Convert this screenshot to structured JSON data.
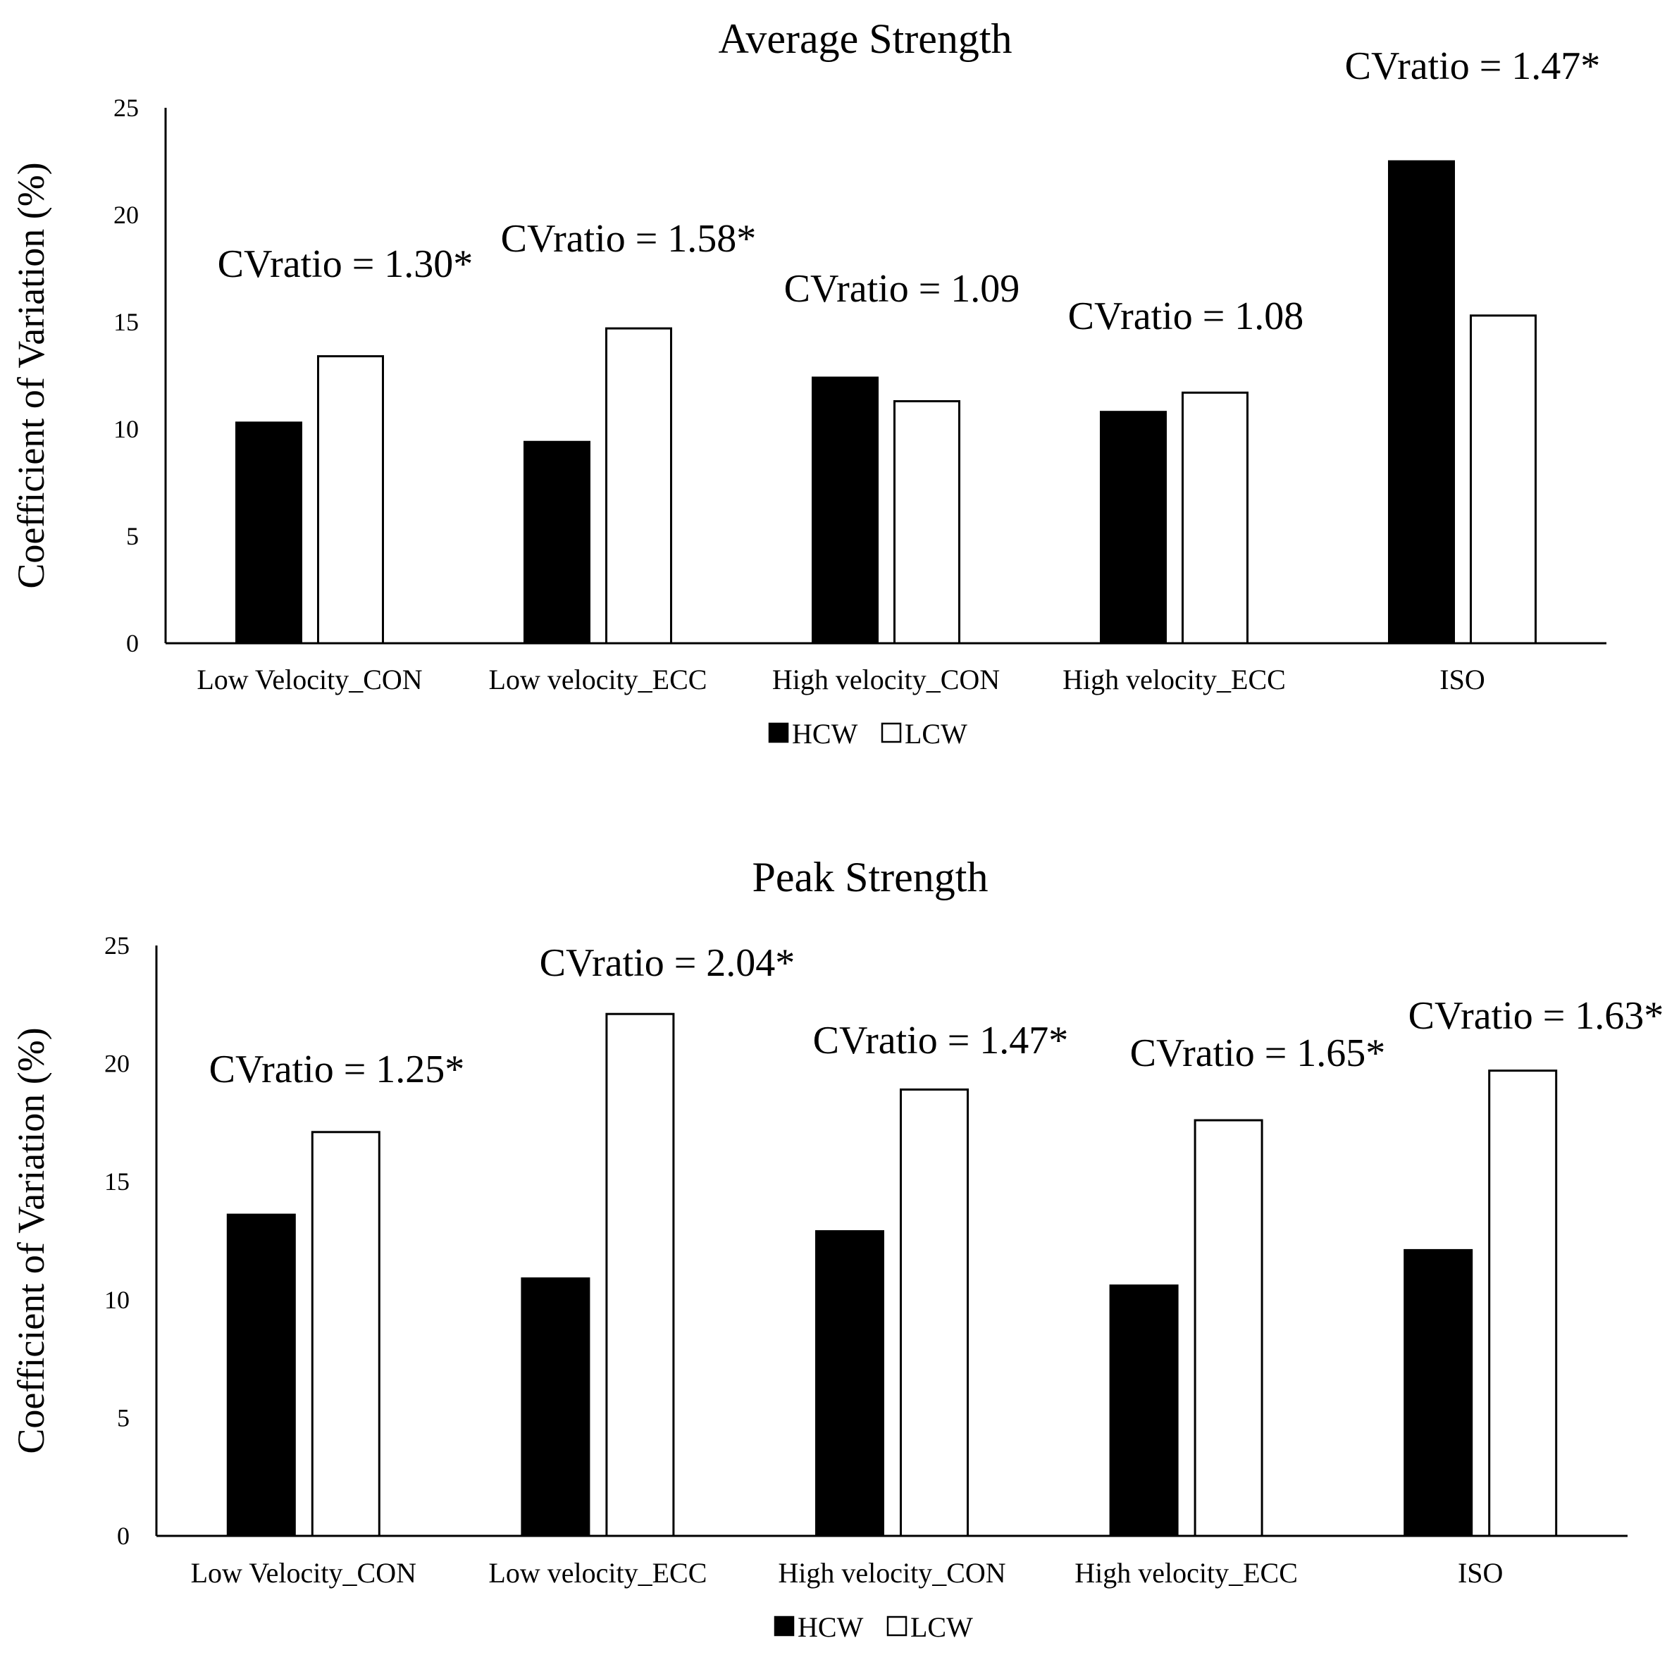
{
  "chart_data": [
    {
      "type": "bar",
      "title": "Average Strength",
      "ylabel": "Coefficient of Variation (%)",
      "xlabel": "",
      "ylim": [
        0,
        25
      ],
      "yticks": [
        "0",
        "5",
        "10",
        "15",
        "20",
        "25"
      ],
      "categories": [
        "Low Velocity_CON",
        "Low velocity_ECC",
        "High velocity_CON",
        "High velocity_ECC",
        "ISO"
      ],
      "series": [
        {
          "name": "HCW",
          "color": "#000000",
          "values": [
            10.3,
            9.4,
            12.4,
            10.8,
            22.5
          ]
        },
        {
          "name": "LCW",
          "color": "#ffffff",
          "values": [
            13.4,
            14.7,
            11.3,
            11.7,
            15.3
          ]
        }
      ],
      "annotations": [
        "CVratio = 1.30*",
        "CVratio = 1.58*",
        "CVratio = 1.09",
        "CVratio = 1.08",
        "CVratio = 1.47*"
      ],
      "legend": [
        "HCW",
        "LCW"
      ],
      "legend_position": "bottom",
      "grid": false
    },
    {
      "type": "bar",
      "title": "Peak Strength",
      "ylabel": "Coefficient of Variation (%)",
      "xlabel": "",
      "ylim": [
        0,
        25
      ],
      "yticks": [
        "0",
        "5",
        "10",
        "15",
        "20",
        "25"
      ],
      "categories": [
        "Low Velocity_CON",
        "Low velocity_ECC",
        "High velocity_CON",
        "High velocity_ECC",
        "ISO"
      ],
      "series": [
        {
          "name": "HCW",
          "color": "#000000",
          "values": [
            13.6,
            10.9,
            12.9,
            10.6,
            12.1
          ]
        },
        {
          "name": "LCW",
          "color": "#ffffff",
          "values": [
            17.1,
            22.1,
            18.9,
            17.6,
            19.7
          ]
        }
      ],
      "annotations": [
        "CVratio = 1.25*",
        "CVratio = 2.04*",
        "CVratio = 1.47*",
        "CVratio = 1.65*",
        "CVratio = 1.63*"
      ],
      "legend": [
        "HCW",
        "LCW"
      ],
      "legend_position": "bottom",
      "grid": false
    }
  ]
}
